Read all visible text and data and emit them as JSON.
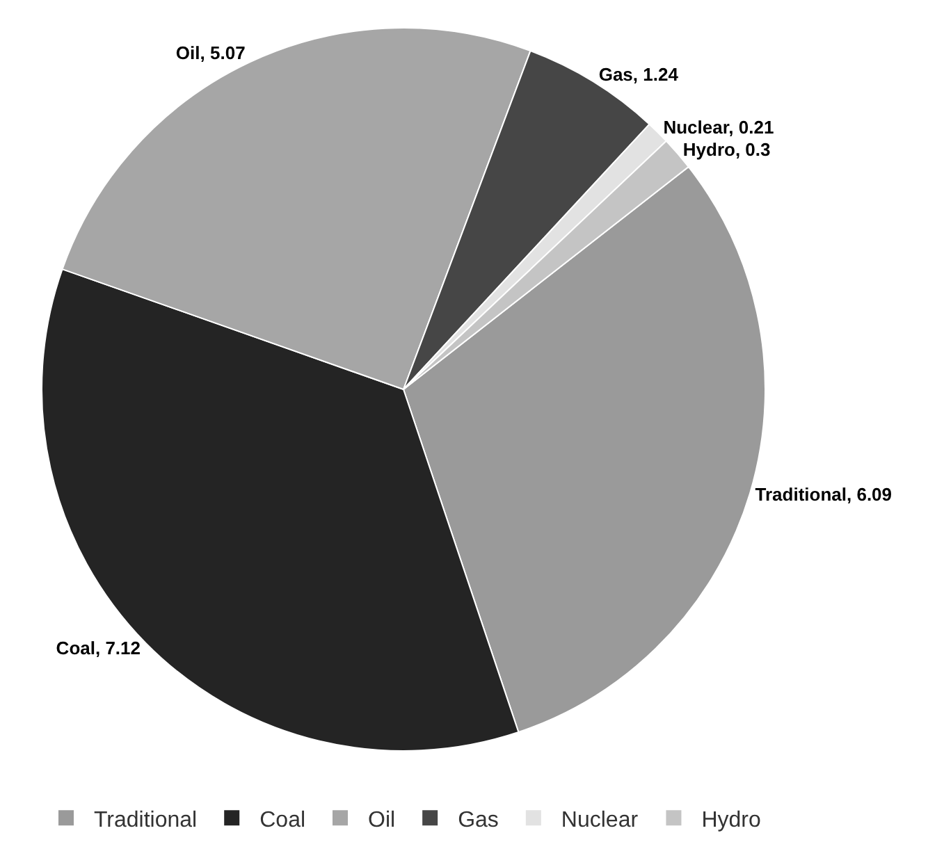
{
  "chart_data": {
    "type": "pie",
    "categories": [
      "Traditional",
      "Coal",
      "Oil",
      "Gas",
      "Nuclear",
      "Hydro"
    ],
    "values": [
      6.09,
      7.12,
      5.07,
      1.24,
      0.21,
      0.3
    ],
    "value_labels": [
      "Traditional, 6.09",
      "Coal, 7.12",
      "Oil, 5.07",
      "Gas, 1.24",
      "Nuclear, 0.21",
      "Hydro, 0.3"
    ],
    "colors": [
      "#9a9a9a",
      "#242424",
      "#a6a6a6",
      "#464646",
      "#e2e2e2",
      "#c4c4c4"
    ],
    "legend": "bottom"
  }
}
